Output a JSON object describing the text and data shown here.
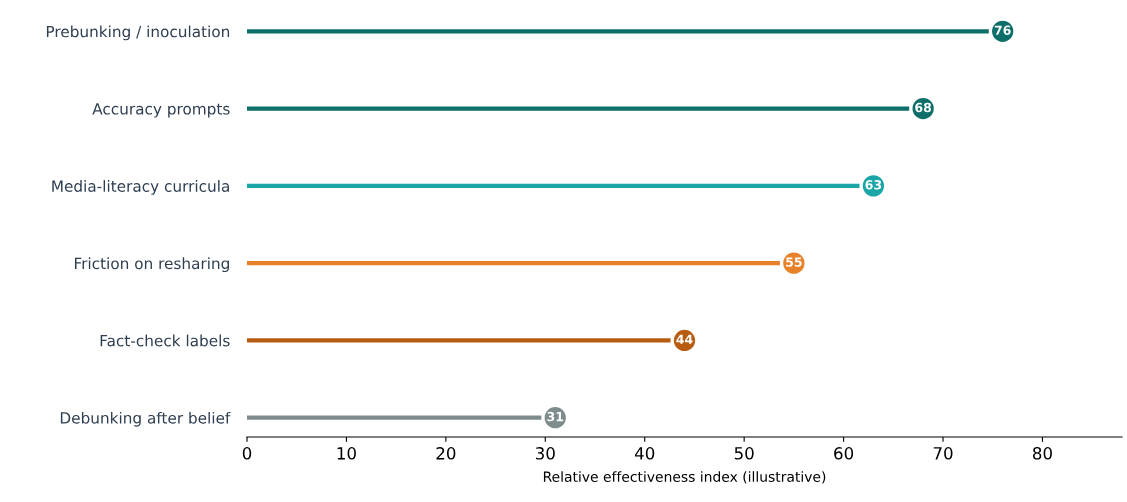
{
  "chart_data": {
    "type": "lollipop",
    "orientation": "horizontal",
    "xlabel": "Relative effectiveness index (illustrative)",
    "categories": [
      "Prebunking / inoculation",
      "Accuracy prompts",
      "Media-literacy curricula",
      "Friction on resharing",
      "Fact-check labels",
      "Debunking after belief"
    ],
    "values": [
      76,
      68,
      63,
      55,
      44,
      31
    ],
    "colors": [
      "#0e6e6a",
      "#0e6e6a",
      "#1aa6a6",
      "#e8822a",
      "#b85c12",
      "#7f8c8d"
    ],
    "xlim": [
      0,
      88
    ],
    "xticks": [
      0,
      10,
      20,
      30,
      40,
      50,
      60,
      70,
      80
    ],
    "data_labels": true,
    "grid": false
  }
}
